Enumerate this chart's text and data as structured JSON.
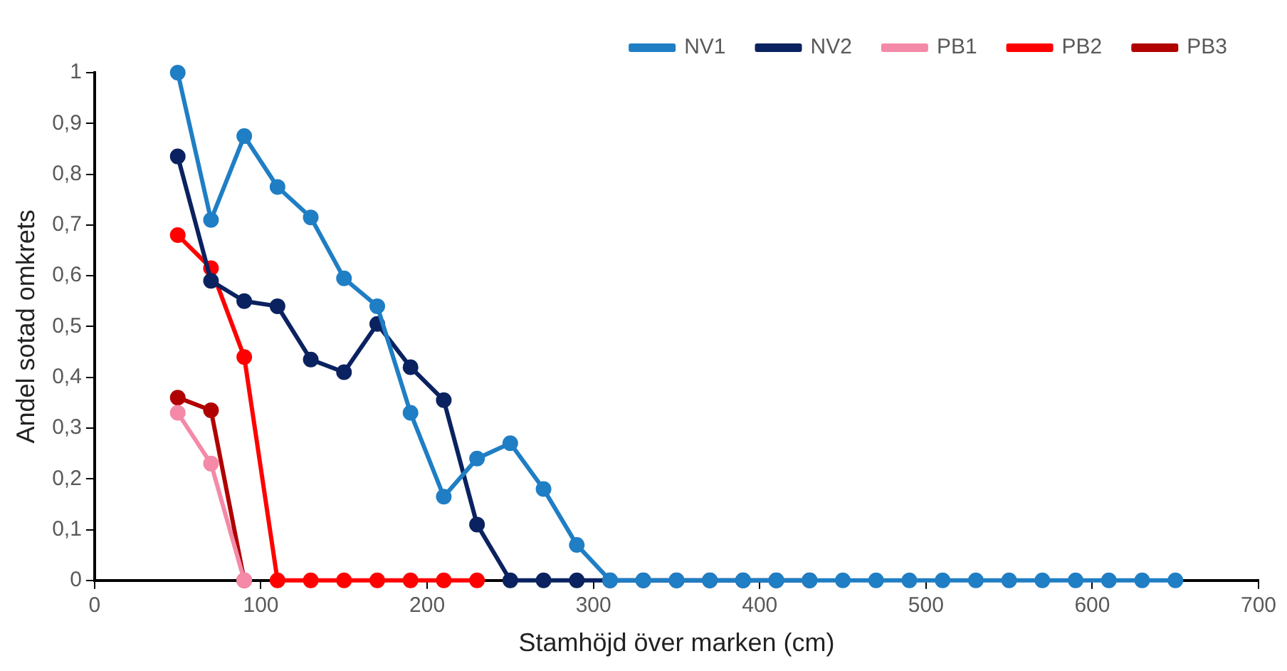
{
  "chart_data": {
    "type": "line",
    "xlabel": "Stamhöjd över marken (cm)",
    "ylabel": "Andel sotad omkrets",
    "xlim": [
      0,
      700
    ],
    "xticks": [
      0,
      100,
      200,
      300,
      400,
      500,
      600,
      700
    ],
    "ylim": [
      0,
      1
    ],
    "yticks": [
      0,
      {
        "value": 0.1,
        "label": "0,1"
      },
      {
        "value": 0.2,
        "label": "0,2"
      },
      {
        "value": 0.3,
        "label": "0,3"
      },
      {
        "value": 0.4,
        "label": "0,4"
      },
      {
        "value": 0.5,
        "label": "0,5"
      },
      {
        "value": 0.6,
        "label": "0,6"
      },
      {
        "value": 0.7,
        "label": "0,7"
      },
      {
        "value": 0.8,
        "label": "0,8"
      },
      {
        "value": 0.9,
        "label": "0,9"
      },
      1
    ],
    "grid": false,
    "legend": "top right",
    "marker": "circle",
    "line_style": "solid",
    "series": [
      {
        "name": "NV1",
        "color": "#1f7ec4",
        "x": [
          50,
          70,
          90,
          110,
          130,
          150,
          170,
          190,
          210,
          230,
          250,
          270,
          290,
          310,
          330,
          350,
          370,
          390,
          410,
          430,
          450,
          470,
          490,
          510,
          530,
          550,
          570,
          590,
          610,
          630,
          650
        ],
        "values": [
          1,
          0.71,
          0.875,
          0.775,
          0.715,
          0.595,
          0.54,
          0.33,
          0.165,
          0.24,
          0.27,
          0.18,
          0.07,
          0,
          0,
          0,
          0,
          0,
          0,
          0,
          0,
          0,
          0,
          0,
          0,
          0,
          0,
          0,
          0,
          0,
          0
        ]
      },
      {
        "name": "NV2",
        "color": "#0b2260",
        "x": [
          50,
          70,
          90,
          110,
          130,
          150,
          170,
          190,
          210,
          230,
          250,
          270,
          290,
          310,
          330,
          350,
          370,
          390,
          410,
          430
        ],
        "values": [
          0.835,
          0.59,
          0.55,
          0.54,
          0.435,
          0.41,
          0.505,
          0.42,
          0.355,
          0.11,
          0,
          0,
          0,
          0,
          0,
          0,
          0,
          0,
          0,
          0
        ]
      },
      {
        "name": "PB1",
        "color": "#f48aa8",
        "x": [
          50,
          70,
          90
        ],
        "values": [
          0.33,
          0.23,
          0
        ]
      },
      {
        "name": "PB2",
        "color": "#ff0000",
        "x": [
          50,
          70,
          90,
          110,
          130,
          150,
          170,
          190,
          210,
          230
        ],
        "values": [
          0.68,
          0.615,
          0.44,
          0,
          0,
          0,
          0,
          0,
          0,
          0
        ]
      },
      {
        "name": "PB3",
        "color": "#b00000",
        "x": [
          50,
          70,
          90
        ],
        "values": [
          0.36,
          0.335,
          0
        ]
      }
    ]
  }
}
